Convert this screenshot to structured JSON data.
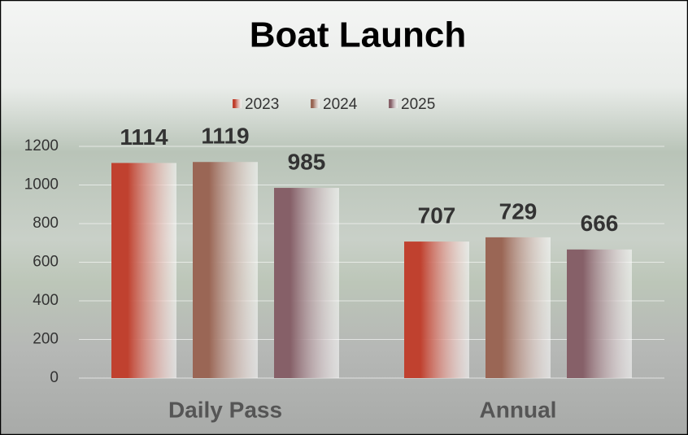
{
  "chart_data": {
    "type": "bar",
    "title": "Boat Launch",
    "categories": [
      "Daily Pass",
      "Annual"
    ],
    "series": [
      {
        "name": "2023",
        "color": "#c0412f",
        "values": [
          1114,
          707
        ]
      },
      {
        "name": "2024",
        "color": "#9a6655",
        "values": [
          1119,
          729
        ]
      },
      {
        "name": "2025",
        "color": "#866068",
        "values": [
          985,
          666
        ]
      }
    ],
    "ylim": [
      0,
      1200
    ],
    "yticks": [
      0,
      200,
      400,
      600,
      800,
      1000,
      1200
    ],
    "grid": true,
    "legend": "top"
  }
}
